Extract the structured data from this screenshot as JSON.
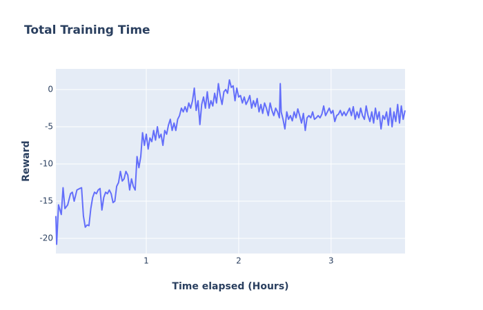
{
  "chart_data": {
    "type": "line",
    "title": "Total Training Time",
    "x_label": "Time elapsed (Hours)",
    "y_label": "Reward",
    "xlim": [
      0.022,
      3.8
    ],
    "ylim": [
      -22.04,
      2.78
    ],
    "xticks": [
      1,
      2,
      3
    ],
    "yticks": [
      0,
      -5,
      -10,
      -15,
      -20
    ],
    "grid": true,
    "background": "#e5ecf6",
    "series": [
      {
        "name": "Reward",
        "color": "#636efa",
        "x": [
          0.022,
          0.03,
          0.05,
          0.08,
          0.1,
          0.12,
          0.15,
          0.18,
          0.2,
          0.22,
          0.25,
          0.28,
          0.3,
          0.32,
          0.34,
          0.36,
          0.38,
          0.4,
          0.42,
          0.44,
          0.46,
          0.48,
          0.5,
          0.52,
          0.54,
          0.56,
          0.58,
          0.6,
          0.62,
          0.64,
          0.66,
          0.68,
          0.7,
          0.72,
          0.74,
          0.76,
          0.78,
          0.8,
          0.82,
          0.84,
          0.86,
          0.88,
          0.9,
          0.92,
          0.94,
          0.96,
          0.98,
          1.0,
          1.02,
          1.04,
          1.06,
          1.08,
          1.1,
          1.12,
          1.14,
          1.16,
          1.18,
          1.2,
          1.22,
          1.24,
          1.26,
          1.28,
          1.3,
          1.32,
          1.34,
          1.36,
          1.38,
          1.4,
          1.42,
          1.44,
          1.46,
          1.48,
          1.5,
          1.52,
          1.54,
          1.56,
          1.58,
          1.6,
          1.62,
          1.64,
          1.66,
          1.68,
          1.7,
          1.72,
          1.74,
          1.76,
          1.78,
          1.8,
          1.82,
          1.84,
          1.86,
          1.88,
          1.9,
          1.92,
          1.94,
          1.96,
          1.98,
          2.0,
          2.02,
          2.04,
          2.06,
          2.08,
          2.1,
          2.12,
          2.14,
          2.16,
          2.18,
          2.2,
          2.22,
          2.24,
          2.26,
          2.28,
          2.3,
          2.32,
          2.34,
          2.36,
          2.38,
          2.4,
          2.42,
          2.44,
          2.45,
          2.46,
          2.48,
          2.5,
          2.52,
          2.54,
          2.56,
          2.58,
          2.6,
          2.62,
          2.64,
          2.66,
          2.68,
          2.7,
          2.72,
          2.74,
          2.76,
          2.78,
          2.8,
          2.82,
          2.84,
          2.86,
          2.88,
          2.9,
          2.92,
          2.94,
          2.96,
          2.98,
          3.0,
          3.02,
          3.04,
          3.06,
          3.08,
          3.1,
          3.12,
          3.14,
          3.16,
          3.18,
          3.2,
          3.22,
          3.24,
          3.26,
          3.28,
          3.3,
          3.32,
          3.34,
          3.36,
          3.38,
          3.4,
          3.42,
          3.44,
          3.46,
          3.48,
          3.5,
          3.52,
          3.54,
          3.56,
          3.58,
          3.6,
          3.62,
          3.64,
          3.66,
          3.68,
          3.7,
          3.72,
          3.74,
          3.76,
          3.78,
          3.8
        ],
        "values": [
          -17,
          -20.8,
          -15.5,
          -16.8,
          -13.2,
          -16,
          -15.5,
          -14,
          -13.8,
          -15,
          -13.5,
          -13.3,
          -13.2,
          -17,
          -18.5,
          -18.2,
          -18.3,
          -16,
          -14.5,
          -13.8,
          -14,
          -13.5,
          -13.3,
          -16.2,
          -14.5,
          -13.8,
          -14,
          -13.5,
          -14,
          -15.2,
          -15,
          -13,
          -12.5,
          -11,
          -12.3,
          -12,
          -11,
          -11.5,
          -13.5,
          -12,
          -13,
          -13.5,
          -9,
          -10.5,
          -9,
          -5.8,
          -7.5,
          -6,
          -8,
          -6.5,
          -7,
          -5.5,
          -6.8,
          -5,
          -6.5,
          -6,
          -7.5,
          -5.5,
          -6,
          -4.8,
          -4,
          -5.5,
          -4.5,
          -5.5,
          -4,
          -3.5,
          -2.5,
          -3,
          -2.3,
          -3,
          -1.8,
          -2.5,
          -1.5,
          0.2,
          -2.8,
          -1.5,
          -4.7,
          -2,
          -1,
          -2.5,
          -0.3,
          -2.5,
          -1.5,
          -2.2,
          -0.5,
          -1.8,
          0.8,
          -0.8,
          -2,
          -0.3,
          0,
          -0.5,
          1.3,
          0.3,
          0.5,
          -1.5,
          0.2,
          -1,
          -0.8,
          -1.8,
          -1,
          -2,
          -1.5,
          -0.8,
          -2.5,
          -1.5,
          -2.3,
          -1.2,
          -3,
          -2,
          -3.2,
          -1.8,
          -2.5,
          -3.5,
          -1.8,
          -2.8,
          -3.5,
          -2.5,
          -3,
          -3.8,
          0.8,
          -3,
          -4,
          -5.3,
          -3,
          -4,
          -3.5,
          -4.2,
          -3,
          -3.8,
          -2.6,
          -3.5,
          -4.5,
          -3.2,
          -5.5,
          -3.8,
          -3.5,
          -3.8,
          -3,
          -4,
          -3.8,
          -3.5,
          -3.8,
          -3.3,
          -2.2,
          -3.5,
          -3,
          -2.5,
          -3.2,
          -2.8,
          -4.3,
          -3.5,
          -3.3,
          -2.8,
          -3.5,
          -3,
          -3.5,
          -3,
          -2.5,
          -3.5,
          -2.3,
          -4,
          -3,
          -3.8,
          -2.5,
          -3.5,
          -4,
          -2.2,
          -3.5,
          -4.3,
          -3,
          -4.5,
          -2.5,
          -4,
          -3,
          -5.3,
          -3.5,
          -4,
          -3,
          -4.8,
          -2.5,
          -5,
          -3,
          -4.3,
          -2,
          -4.5,
          -2.2,
          -4,
          -2.8
        ]
      }
    ]
  }
}
